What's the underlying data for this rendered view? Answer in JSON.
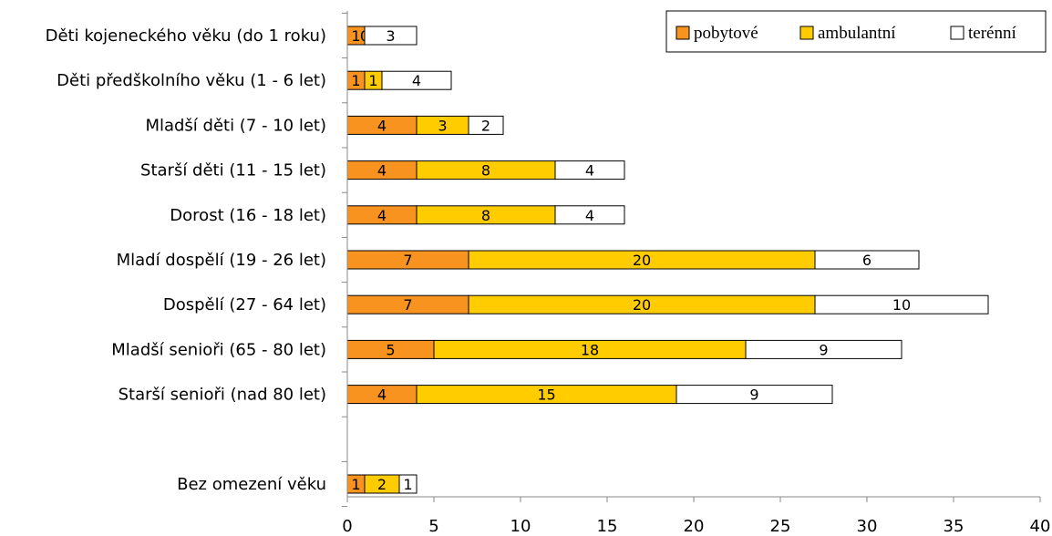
{
  "chart_data": {
    "type": "bar",
    "orientation": "horizontal",
    "stacked": true,
    "categories": [
      "Děti kojeneckého věku (do 1 roku)",
      "Děti předškolního věku (1 - 6 let)",
      "Mladší děti (7 - 10 let)",
      "Starší děti (11 - 15 let)",
      "Dorost (16 - 18 let)",
      "Mladí dospělí (19 - 26 let)",
      "Dospělí (27 - 64 let)",
      "Mladší senioři (65 - 80 let)",
      "Starší senioři (nad 80 let)",
      "",
      "Bez omezení věku"
    ],
    "series": [
      {
        "name": "pobytové",
        "color": "#F7931E",
        "values": [
          1,
          1,
          4,
          4,
          4,
          7,
          7,
          5,
          4,
          null,
          1
        ],
        "labels": [
          "1",
          "1",
          "4",
          "4",
          "4",
          "7",
          "7",
          "5",
          "4",
          null,
          "1"
        ]
      },
      {
        "name": "ambulantní",
        "color": "#FFCC00",
        "values": [
          0,
          1,
          3,
          8,
          8,
          20,
          20,
          18,
          15,
          null,
          2
        ],
        "labels": [
          "0",
          "1",
          "3",
          "8",
          "8",
          "20",
          "20",
          "18",
          "15",
          null,
          "2"
        ]
      },
      {
        "name": "terénní",
        "color": "#FFFFFF",
        "values": [
          3,
          4,
          2,
          4,
          4,
          6,
          10,
          9,
          9,
          null,
          1
        ],
        "labels": [
          "3",
          "4",
          "2",
          "4",
          "4",
          "6",
          "10",
          "9",
          "9",
          null,
          "1"
        ]
      }
    ],
    "xlim": [
      0,
      40
    ],
    "xticks": [
      "0",
      "5",
      "10",
      "15",
      "20",
      "25",
      "30",
      "35",
      "40"
    ],
    "grid": false,
    "legend_position": "top-right",
    "xlabel": "",
    "ylabel": "",
    "title": ""
  }
}
